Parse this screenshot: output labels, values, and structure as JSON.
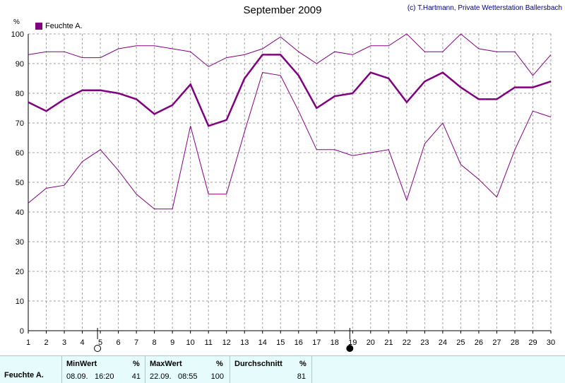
{
  "title": "September 2009",
  "copyright": "(c) T.Hartmann, Private Wetterstation Ballersbach",
  "unit_label": "%",
  "legend_label": "Feuchte A.",
  "colors": {
    "series": "#800080",
    "grid": "#a0a0a0",
    "axis": "#000000"
  },
  "chart_data": {
    "type": "line",
    "title": "September 2009",
    "ylim": [
      0,
      100
    ],
    "yticks": [
      0,
      10,
      20,
      30,
      40,
      50,
      60,
      70,
      80,
      90,
      100
    ],
    "x": [
      1,
      2,
      3,
      4,
      5,
      6,
      7,
      8,
      9,
      10,
      11,
      12,
      13,
      14,
      15,
      16,
      17,
      18,
      19,
      20,
      21,
      22,
      23,
      24,
      25,
      26,
      27,
      28,
      29,
      30
    ],
    "grid": true,
    "legend": "top-left",
    "series": [
      {
        "name": "Feuchte A.",
        "role": "average",
        "values": [
          77,
          74,
          78,
          81,
          81,
          80,
          78,
          73,
          76,
          83,
          69,
          71,
          85,
          93,
          93,
          86,
          75,
          79,
          80,
          87,
          85,
          77,
          84,
          87,
          82,
          78,
          78,
          82,
          82,
          84
        ]
      },
      {
        "role": "max",
        "values": [
          93,
          94,
          94,
          92,
          92,
          95,
          96,
          96,
          95,
          94,
          89,
          92,
          93,
          95,
          99,
          94,
          90,
          94,
          93,
          96,
          96,
          100,
          94,
          94,
          100,
          95,
          94,
          94,
          86,
          93
        ]
      },
      {
        "role": "min",
        "values": [
          43,
          48,
          49,
          57,
          61,
          54,
          46,
          41,
          41,
          69,
          46,
          46,
          67,
          87,
          86,
          74,
          61,
          61,
          59,
          60,
          61,
          44,
          63,
          70,
          56,
          51,
          45,
          61,
          74,
          72
        ]
      }
    ],
    "moon_markers": [
      {
        "day": 5,
        "phase": "full-moon"
      },
      {
        "day": 19,
        "phase": "new-moon"
      }
    ]
  },
  "stats": {
    "series_label": "Feuchte A.",
    "min": {
      "header": "MinWert",
      "unit": "%",
      "date": "08.09.",
      "time": "16:20",
      "value": "41"
    },
    "max": {
      "header": "MaxWert",
      "unit": "%",
      "date": "22.09.",
      "time": "08:55",
      "value": "100"
    },
    "avg": {
      "header": "Durchschnitt",
      "unit": "%",
      "value": "81"
    }
  }
}
